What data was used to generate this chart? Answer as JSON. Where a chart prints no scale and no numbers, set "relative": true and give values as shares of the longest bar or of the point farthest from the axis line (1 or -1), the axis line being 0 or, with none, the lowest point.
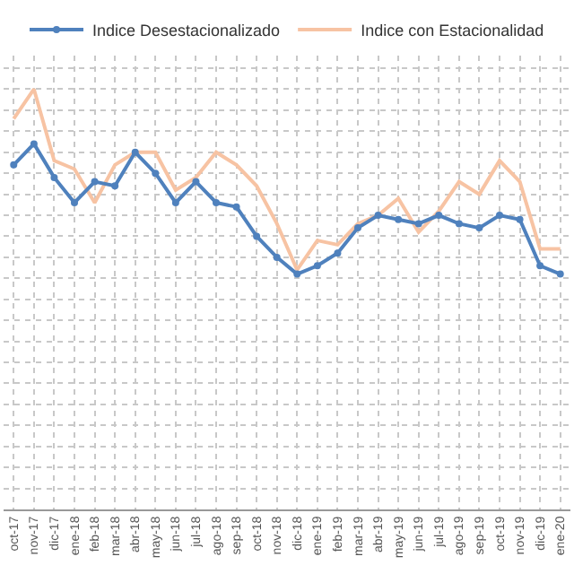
{
  "chart_data": {
    "type": "line",
    "relative": true,
    "grid": true,
    "legend": "top",
    "categories": [
      "oct-17",
      "nov-17",
      "dic-17",
      "ene-18",
      "feb-18",
      "mar-18",
      "abr-18",
      "may-18",
      "jun-18",
      "jul-18",
      "ago-18",
      "sep-18",
      "oct-18",
      "nov-18",
      "dic-18",
      "ene-19",
      "feb-19",
      "mar-19",
      "abr-19",
      "may-19",
      "jun-19",
      "jul-19",
      "ago-19",
      "sep-19",
      "oct-19",
      "nov-19",
      "dic-19",
      "ene-20"
    ],
    "series": [
      {
        "name": "Indice Desestacionalizado",
        "color": "#4f81bd",
        "marker": "circle",
        "values": [
          0.82,
          0.87,
          0.79,
          0.73,
          0.78,
          0.77,
          0.85,
          0.8,
          0.73,
          0.78,
          0.73,
          0.72,
          0.65,
          0.6,
          0.56,
          0.58,
          0.61,
          0.67,
          0.7,
          0.69,
          0.68,
          0.7,
          0.68,
          0.67,
          0.7,
          0.69,
          0.58,
          0.56
        ]
      },
      {
        "name": "Indice con Estacionalidad",
        "color": "#f7c3a3",
        "marker": "none",
        "values": [
          0.93,
          1.0,
          0.83,
          0.81,
          0.73,
          0.82,
          0.85,
          0.85,
          0.76,
          0.79,
          0.85,
          0.82,
          0.77,
          0.68,
          0.57,
          0.64,
          0.63,
          0.68,
          0.7,
          0.74,
          0.66,
          0.71,
          0.78,
          0.75,
          0.83,
          0.78,
          0.62,
          0.62
        ]
      }
    ]
  }
}
